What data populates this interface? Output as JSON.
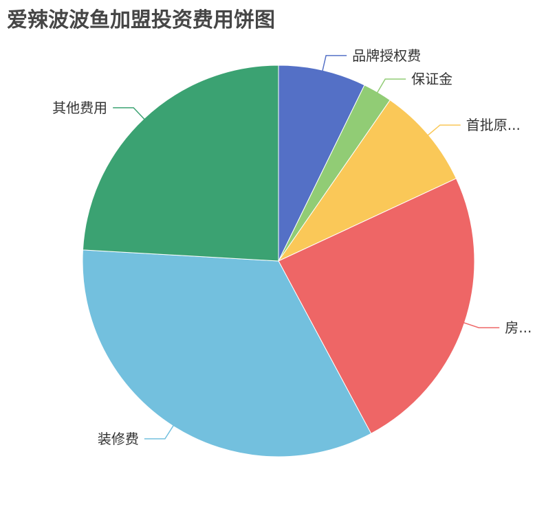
{
  "chart_data": {
    "type": "pie",
    "title": "爱辣波波鱼加盟投资费用饼图",
    "start": "top, clockwise",
    "legend": "none",
    "slices": [
      {
        "label": "品牌授权费",
        "value": 3,
        "color": "#5470c6"
      },
      {
        "label": "保证金",
        "value": 1,
        "color": "#91cc75"
      },
      {
        "label": "首批原...",
        "value": 3.5,
        "color": "#fac858"
      },
      {
        "label": "房...",
        "value": 10,
        "color": "#ee6666"
      },
      {
        "label": "装修费",
        "value": 14,
        "color": "#73c0de"
      },
      {
        "label": "其他费用",
        "value": 10,
        "color": "#3ba272"
      }
    ]
  }
}
